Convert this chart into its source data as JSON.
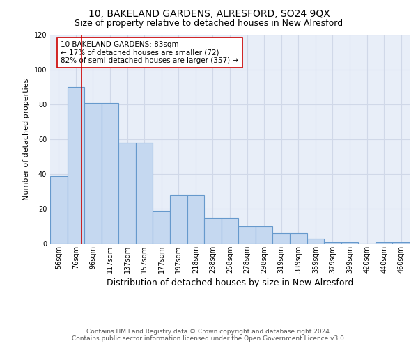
{
  "title": "10, BAKELAND GARDENS, ALRESFORD, SO24 9QX",
  "subtitle": "Size of property relative to detached houses in New Alresford",
  "xlabel": "Distribution of detached houses by size in New Alresford",
  "ylabel": "Number of detached properties",
  "bar_labels": [
    "56sqm",
    "76sqm",
    "96sqm",
    "117sqm",
    "137sqm",
    "157sqm",
    "177sqm",
    "197sqm",
    "218sqm",
    "238sqm",
    "258sqm",
    "278sqm",
    "298sqm",
    "319sqm",
    "339sqm",
    "359sqm",
    "379sqm",
    "399sqm",
    "420sqm",
    "440sqm",
    "460sqm"
  ],
  "bar_values": [
    39,
    90,
    81,
    81,
    58,
    58,
    19,
    28,
    28,
    15,
    15,
    10,
    10,
    6,
    6,
    3,
    1,
    1,
    0,
    1,
    1
  ],
  "bar_color": "#c5d8f0",
  "bar_edge_color": "#6699cc",
  "grid_color": "#d0d8e8",
  "bg_color": "#e8eef8",
  "ylim": [
    0,
    120
  ],
  "yticks": [
    0,
    20,
    40,
    60,
    80,
    100,
    120
  ],
  "red_line_x": 1.35,
  "annotation_text": "10 BAKELAND GARDENS: 83sqm\n← 17% of detached houses are smaller (72)\n82% of semi-detached houses are larger (357) →",
  "annotation_box_color": "#ffffff",
  "annotation_text_color": "#000000",
  "footer_line1": "Contains HM Land Registry data © Crown copyright and database right 2024.",
  "footer_line2": "Contains public sector information licensed under the Open Government Licence v3.0.",
  "title_fontsize": 10,
  "subtitle_fontsize": 9,
  "xlabel_fontsize": 9,
  "ylabel_fontsize": 8,
  "tick_fontsize": 7,
  "annotation_fontsize": 7.5,
  "footer_fontsize": 6.5
}
